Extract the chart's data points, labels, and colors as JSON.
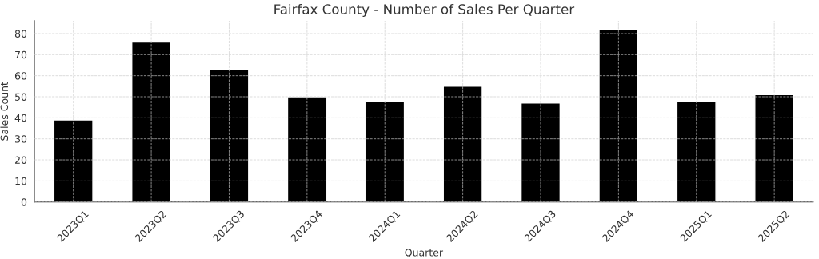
{
  "chart_data": {
    "type": "bar",
    "title": "Fairfax County - Number of Sales Per Quarter",
    "xlabel": "Quarter",
    "ylabel": "Sales Count",
    "categories": [
      "2023Q1",
      "2023Q2",
      "2023Q3",
      "2023Q4",
      "2024Q1",
      "2024Q2",
      "2024Q3",
      "2024Q4",
      "2025Q1",
      "2025Q2"
    ],
    "values": [
      39,
      76,
      63,
      50,
      48,
      55,
      47,
      82,
      48,
      51
    ],
    "color": "#000000",
    "ylim": [
      0,
      86.1
    ],
    "yticks": [
      0,
      10,
      20,
      30,
      40,
      50,
      60,
      70,
      80
    ],
    "grid": true
  }
}
